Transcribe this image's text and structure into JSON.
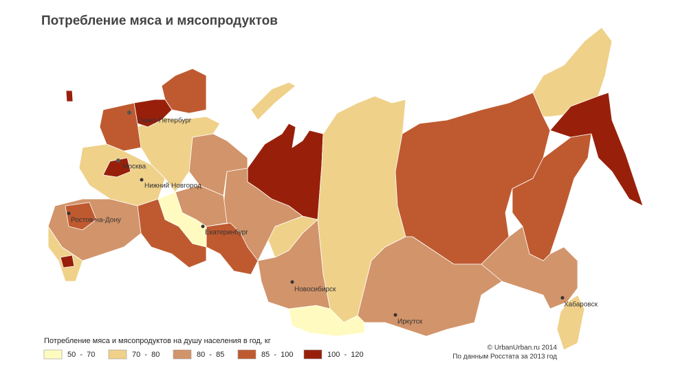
{
  "title": "Потребление мяса и мясопродуктов",
  "cities": [
    {
      "name": "Санкт-Петербург"
    },
    {
      "name": "Москва"
    },
    {
      "name": "Нижний Новгород"
    },
    {
      "name": "Ростов-на-Дону"
    },
    {
      "name": "Екатеринбург"
    },
    {
      "name": "Новосибирск"
    },
    {
      "name": "Иркутск"
    },
    {
      "name": "Хабаровск"
    }
  ],
  "legend": {
    "title": "Потребление мяса и мясопродуктов на душу населения в год, кг",
    "items": [
      {
        "label": "50  -  70",
        "color": "#fffbc0"
      },
      {
        "label": "70  -  80",
        "color": "#efd18a"
      },
      {
        "label": "80  -  85",
        "color": "#d2946a"
      },
      {
        "label": "85  -  100",
        "color": "#bf5a30"
      },
      {
        "label": "100  -  120",
        "color": "#98200b"
      }
    ]
  },
  "credits": [
    "© UrbanUrban.ru 2014",
    "По данным Росстата за 2013 год"
  ]
}
